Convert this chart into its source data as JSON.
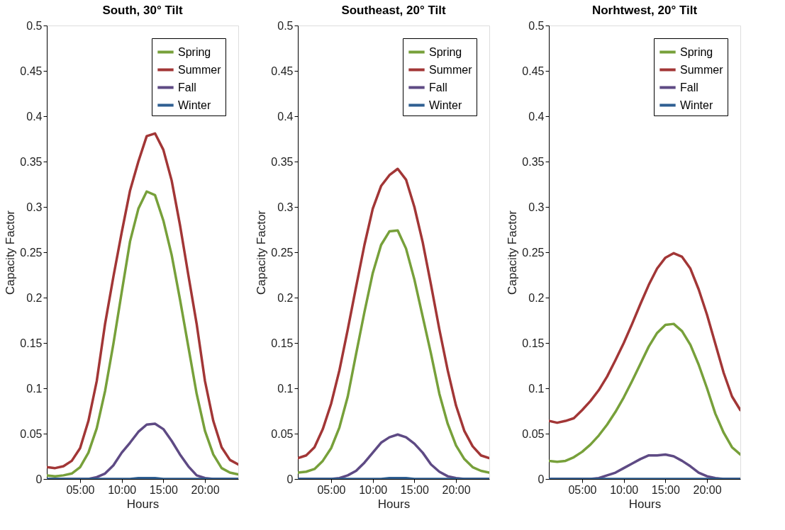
{
  "chart_data": [
    {
      "type": "line",
      "title": "South, 30° Tilt",
      "xlabel": "Hours",
      "ylabel": "Capacity Factor",
      "legend": "top right",
      "grid": false,
      "marker": "none",
      "line_style": "solid",
      "x": [
        1,
        2,
        3,
        4,
        5,
        6,
        7,
        8,
        9,
        10,
        11,
        12,
        13,
        14,
        15,
        16,
        17,
        18,
        19,
        20,
        21,
        22,
        23,
        24
      ],
      "xlim": [
        1,
        24
      ],
      "xticks": [
        {
          "value": 5,
          "label": "05:00"
        },
        {
          "value": 10,
          "label": "10:00"
        },
        {
          "value": 15,
          "label": "15:00"
        },
        {
          "value": 20,
          "label": "20:00"
        }
      ],
      "ylim": [
        0,
        0.5
      ],
      "yticks": [
        0,
        0.05,
        0.1,
        0.15,
        0.2,
        0.25,
        0.3,
        0.35,
        0.4,
        0.45,
        0.5
      ],
      "series": [
        {
          "name": "Spring",
          "color": "#77a03a",
          "values": [
            0.004,
            0.003,
            0.004,
            0.006,
            0.013,
            0.029,
            0.056,
            0.097,
            0.149,
            0.206,
            0.262,
            0.298,
            0.317,
            0.313,
            0.285,
            0.247,
            0.198,
            0.146,
            0.094,
            0.053,
            0.027,
            0.012,
            0.007,
            0.005
          ]
        },
        {
          "name": "Summer",
          "color": "#a23636",
          "values": [
            0.013,
            0.012,
            0.014,
            0.02,
            0.034,
            0.064,
            0.108,
            0.171,
            0.223,
            0.272,
            0.318,
            0.35,
            0.378,
            0.381,
            0.363,
            0.329,
            0.28,
            0.225,
            0.171,
            0.108,
            0.064,
            0.035,
            0.021,
            0.016
          ]
        },
        {
          "name": "Fall",
          "color": "#5e4a84",
          "values": [
            0,
            0,
            0,
            0,
            0,
            0,
            0.002,
            0.006,
            0.015,
            0.029,
            0.04,
            0.052,
            0.06,
            0.061,
            0.055,
            0.042,
            0.027,
            0.014,
            0.004,
            0.001,
            0,
            0,
            0,
            0
          ]
        },
        {
          "name": "Winter",
          "color": "#2f5f92",
          "values": [
            0,
            0,
            0,
            0,
            0,
            0,
            0,
            0,
            0,
            0,
            0,
            0.001,
            0.001,
            0.001,
            0,
            0,
            0,
            0,
            0,
            0,
            0,
            0,
            0,
            0
          ]
        }
      ]
    },
    {
      "type": "line",
      "title": "Southeast, 20° Tilt",
      "xlabel": "Hours",
      "ylabel": "Capacity Factor",
      "legend": "top right",
      "grid": false,
      "marker": "none",
      "line_style": "solid",
      "x": [
        1,
        2,
        3,
        4,
        5,
        6,
        7,
        8,
        9,
        10,
        11,
        12,
        13,
        14,
        15,
        16,
        17,
        18,
        19,
        20,
        21,
        22,
        23,
        24
      ],
      "xlim": [
        1,
        24
      ],
      "xticks": [
        {
          "value": 5,
          "label": "05:00"
        },
        {
          "value": 10,
          "label": "10:00"
        },
        {
          "value": 15,
          "label": "15:00"
        },
        {
          "value": 20,
          "label": "20:00"
        }
      ],
      "ylim": [
        0,
        0.5
      ],
      "yticks": [
        0,
        0.05,
        0.1,
        0.15,
        0.2,
        0.25,
        0.3,
        0.35,
        0.4,
        0.45,
        0.5
      ],
      "series": [
        {
          "name": "Spring",
          "color": "#77a03a",
          "values": [
            0.007,
            0.008,
            0.011,
            0.02,
            0.034,
            0.057,
            0.091,
            0.138,
            0.184,
            0.227,
            0.258,
            0.273,
            0.274,
            0.254,
            0.22,
            0.179,
            0.138,
            0.094,
            0.061,
            0.037,
            0.022,
            0.013,
            0.009,
            0.007
          ]
        },
        {
          "name": "Summer",
          "color": "#a23636",
          "values": [
            0.023,
            0.026,
            0.035,
            0.055,
            0.083,
            0.12,
            0.165,
            0.212,
            0.258,
            0.298,
            0.323,
            0.335,
            0.342,
            0.33,
            0.3,
            0.261,
            0.214,
            0.165,
            0.12,
            0.081,
            0.053,
            0.036,
            0.026,
            0.023
          ]
        },
        {
          "name": "Fall",
          "color": "#5e4a84",
          "values": [
            0,
            0,
            0,
            0,
            0,
            0.001,
            0.004,
            0.009,
            0.018,
            0.029,
            0.04,
            0.046,
            0.049,
            0.046,
            0.039,
            0.029,
            0.016,
            0.008,
            0.003,
            0.001,
            0,
            0,
            0,
            0
          ]
        },
        {
          "name": "Winter",
          "color": "#2f5f92",
          "values": [
            0,
            0,
            0,
            0,
            0,
            0,
            0,
            0,
            0,
            0,
            0,
            0.001,
            0.001,
            0.001,
            0,
            0,
            0,
            0,
            0,
            0,
            0,
            0,
            0,
            0
          ]
        }
      ]
    },
    {
      "type": "line",
      "title": "Norhtwest, 20° Tilt",
      "xlabel": "Hours",
      "ylabel": "Capacity Factor",
      "legend": "top right",
      "grid": false,
      "marker": "none",
      "line_style": "solid",
      "x": [
        1,
        2,
        3,
        4,
        5,
        6,
        7,
        8,
        9,
        10,
        11,
        12,
        13,
        14,
        15,
        16,
        17,
        18,
        19,
        20,
        21,
        22,
        23,
        24
      ],
      "xlim": [
        1,
        24
      ],
      "xticks": [
        {
          "value": 5,
          "label": "05:00"
        },
        {
          "value": 10,
          "label": "10:00"
        },
        {
          "value": 15,
          "label": "15:00"
        },
        {
          "value": 20,
          "label": "20:00"
        }
      ],
      "ylim": [
        0,
        0.5
      ],
      "yticks": [
        0,
        0.05,
        0.1,
        0.15,
        0.2,
        0.25,
        0.3,
        0.35,
        0.4,
        0.45,
        0.5
      ],
      "series": [
        {
          "name": "Spring",
          "color": "#77a03a",
          "values": [
            0.02,
            0.019,
            0.02,
            0.024,
            0.03,
            0.038,
            0.048,
            0.06,
            0.074,
            0.09,
            0.108,
            0.127,
            0.146,
            0.161,
            0.17,
            0.171,
            0.163,
            0.148,
            0.126,
            0.1,
            0.072,
            0.051,
            0.035,
            0.027
          ]
        },
        {
          "name": "Summer",
          "color": "#a23636",
          "values": [
            0.064,
            0.062,
            0.064,
            0.067,
            0.076,
            0.086,
            0.098,
            0.113,
            0.131,
            0.15,
            0.171,
            0.193,
            0.214,
            0.232,
            0.244,
            0.249,
            0.245,
            0.232,
            0.209,
            0.181,
            0.149,
            0.117,
            0.091,
            0.076
          ]
        },
        {
          "name": "Fall",
          "color": "#5e4a84",
          "values": [
            0,
            0,
            0,
            0,
            0,
            0,
            0.001,
            0.004,
            0.007,
            0.012,
            0.017,
            0.022,
            0.026,
            0.026,
            0.027,
            0.025,
            0.02,
            0.014,
            0.007,
            0.003,
            0.001,
            0,
            0,
            0
          ]
        },
        {
          "name": "Winter",
          "color": "#2f5f92",
          "values": [
            0,
            0,
            0,
            0,
            0,
            0,
            0,
            0,
            0,
            0,
            0,
            0,
            0,
            0,
            0,
            0,
            0,
            0,
            0,
            0,
            0,
            0,
            0,
            0
          ]
        }
      ]
    }
  ]
}
